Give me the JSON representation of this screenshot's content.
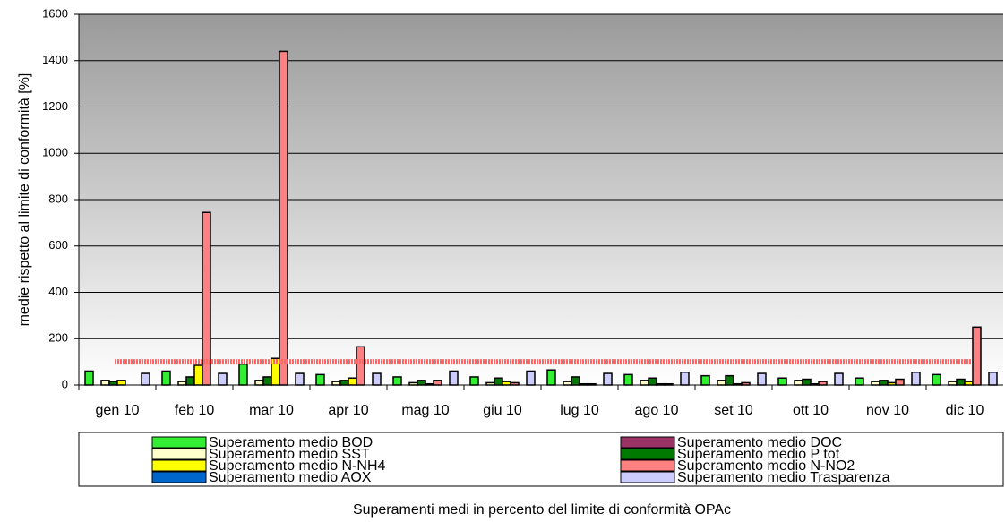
{
  "chart_data": {
    "type": "bar",
    "xlabel": "Superamenti medi in percento del limite di conformità OPAc",
    "ylabel": "medie rispetto al limite di conformità [%]",
    "categories": [
      "gen 10",
      "feb 10",
      "mar 10",
      "apr 10",
      "mag 10",
      "giu 10",
      "lug 10",
      "ago 10",
      "set 10",
      "ott 10",
      "nov 10",
      "dic 10"
    ],
    "series": [
      {
        "name": "Superamento medio BOD",
        "color": "#33ee33",
        "values": [
          60,
          60,
          90,
          45,
          35,
          35,
          65,
          45,
          40,
          30,
          30,
          45
        ]
      },
      {
        "name": "Superamento medio DOC",
        "color": "#993366",
        "values": [
          0,
          0,
          0,
          0,
          0,
          0,
          0,
          0,
          0,
          0,
          0,
          0
        ]
      },
      {
        "name": "Superamento medio SST",
        "color": "#ffffcc",
        "values": [
          20,
          15,
          20,
          15,
          10,
          10,
          15,
          20,
          20,
          20,
          15,
          15
        ]
      },
      {
        "name": "Superamento medio P tot",
        "color": "#007a00",
        "values": [
          15,
          35,
          35,
          20,
          20,
          30,
          35,
          30,
          40,
          25,
          20,
          25
        ]
      },
      {
        "name": "Superamento medio N-NH4",
        "color": "#ffff00",
        "values": [
          20,
          85,
          115,
          30,
          5,
          15,
          5,
          5,
          5,
          5,
          10,
          15
        ]
      },
      {
        "name": "Superamento medio N-NO2",
        "color": "#ff8080",
        "values": [
          0,
          745,
          1440,
          165,
          20,
          10,
          5,
          5,
          10,
          15,
          25,
          250
        ]
      },
      {
        "name": "Superamento medio AOX",
        "color": "#0066cc",
        "values": [
          0,
          0,
          0,
          0,
          0,
          0,
          0,
          0,
          0,
          0,
          0,
          0
        ]
      },
      {
        "name": "Superamento medio Trasparenza",
        "color": "#ccccff",
        "values": [
          50,
          50,
          50,
          50,
          60,
          60,
          50,
          55,
          50,
          50,
          55,
          55
        ]
      }
    ],
    "reference_line": {
      "value": 100,
      "color": "#ff6666"
    },
    "ylim": [
      0,
      1600
    ],
    "yticks": [
      0,
      200,
      400,
      600,
      800,
      1000,
      1200,
      1400,
      1600
    ],
    "grid": true
  }
}
